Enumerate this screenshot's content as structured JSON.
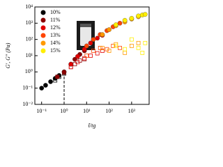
{
  "chart_data": {
    "type": "scatter",
    "xlabel": "t̃/tg",
    "ylabel": "G′, G″ (Pa)",
    "xscale": "log",
    "yscale": "log",
    "xlim": [
      0.05,
      6000
    ],
    "ylim": [
      0.01,
      10000
    ],
    "xticks": [
      {
        "value": 0.1,
        "label": "10⁻¹"
      },
      {
        "value": 1,
        "label": "10⁰"
      },
      {
        "value": 10,
        "label": "10¹"
      },
      {
        "value": 100,
        "label": "10²"
      },
      {
        "value": 1000,
        "label": "10³"
      }
    ],
    "yticks": [
      {
        "value": 0.01,
        "label": "10⁻²"
      },
      {
        "value": 0.1,
        "label": "10⁻¹"
      },
      {
        "value": 1,
        "label": "10⁰"
      },
      {
        "value": 10,
        "label": "10¹"
      },
      {
        "value": 100,
        "label": "10²"
      },
      {
        "value": 1000,
        "label": "10³"
      },
      {
        "value": 10000,
        "label": "10⁴"
      }
    ],
    "legend": "upper left",
    "reference_line": {
      "x": 1,
      "y": 1
    },
    "series": [
      {
        "name": "10%",
        "color": "#000000",
        "x": [
          0.1,
          0.15,
          0.25,
          0.4,
          0.6,
          1.0
        ],
        "g_prime": [
          0.1,
          0.15,
          0.25,
          0.4,
          0.6,
          1
        ],
        "g_double_prime": [
          null,
          null,
          null,
          0.3,
          0.5,
          0.8
        ]
      },
      {
        "name": "11%",
        "color": "#8b0000",
        "x": [
          0.5,
          1,
          2,
          3,
          5,
          8
        ],
        "g_prime": [
          0.5,
          1,
          3,
          6,
          12,
          20
        ],
        "g_double_prime": [
          0.5,
          0.9,
          2,
          3,
          5,
          6
        ]
      },
      {
        "name": "12%",
        "color": "#e00000",
        "x": [
          2,
          4,
          8,
          15,
          30,
          50
        ],
        "g_prime": [
          3,
          9,
          25,
          60,
          120,
          180
        ],
        "g_double_prime": [
          2,
          4,
          7,
          10,
          14,
          20
        ]
      },
      {
        "name": "13%",
        "color": "#ff4500",
        "x": [
          10,
          20,
          40,
          80,
          150,
          300
        ],
        "g_prime": [
          40,
          100,
          200,
          350,
          600,
          1000
        ],
        "g_double_prime": [
          10,
          20,
          30,
          25,
          40,
          30
        ]
      },
      {
        "name": "14%",
        "color": "#ff9900",
        "x": [
          50,
          100,
          200,
          500,
          1000,
          2000
        ],
        "g_prime": [
          200,
          400,
          700,
          1200,
          1800,
          2500
        ],
        "g_double_prime": [
          30,
          20,
          50,
          15,
          40,
          60
        ]
      },
      {
        "name": "15%",
        "color": "#ffee00",
        "x": [
          200,
          500,
          1000,
          2000,
          3000,
          4000
        ],
        "g_prime": [
          800,
          1500,
          2000,
          2800,
          3200,
          3500
        ],
        "g_double_prime": [
          40,
          25,
          100,
          30,
          15,
          60
        ]
      }
    ]
  }
}
